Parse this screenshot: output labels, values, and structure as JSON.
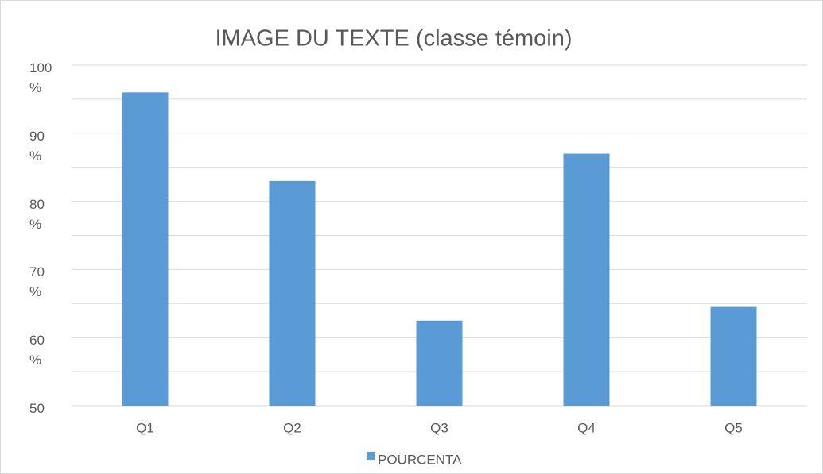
{
  "chart_data": {
    "type": "bar",
    "title": "IMAGE DU TEXTE (classe témoin)",
    "categories": [
      "Q1",
      "Q2",
      "Q3",
      "Q4",
      "Q5"
    ],
    "series": [
      {
        "name": "POURCENTA",
        "color": "#5b9bd5",
        "values": [
          96,
          83,
          62.5,
          87,
          64.5
        ]
      }
    ],
    "ylim": [
      50,
      100
    ],
    "yticks": [
      {
        "value": 50,
        "label": "50"
      },
      {
        "value": 60,
        "label": "60 %"
      },
      {
        "value": 70,
        "label": "70 %"
      },
      {
        "value": 80,
        "label": "80 %"
      },
      {
        "value": 90,
        "label": "90 %"
      },
      {
        "value": 100,
        "label": "100 %"
      }
    ],
    "minor_yticks": [
      55,
      65,
      75,
      85,
      95
    ],
    "grid": true,
    "legend": "bottom"
  }
}
